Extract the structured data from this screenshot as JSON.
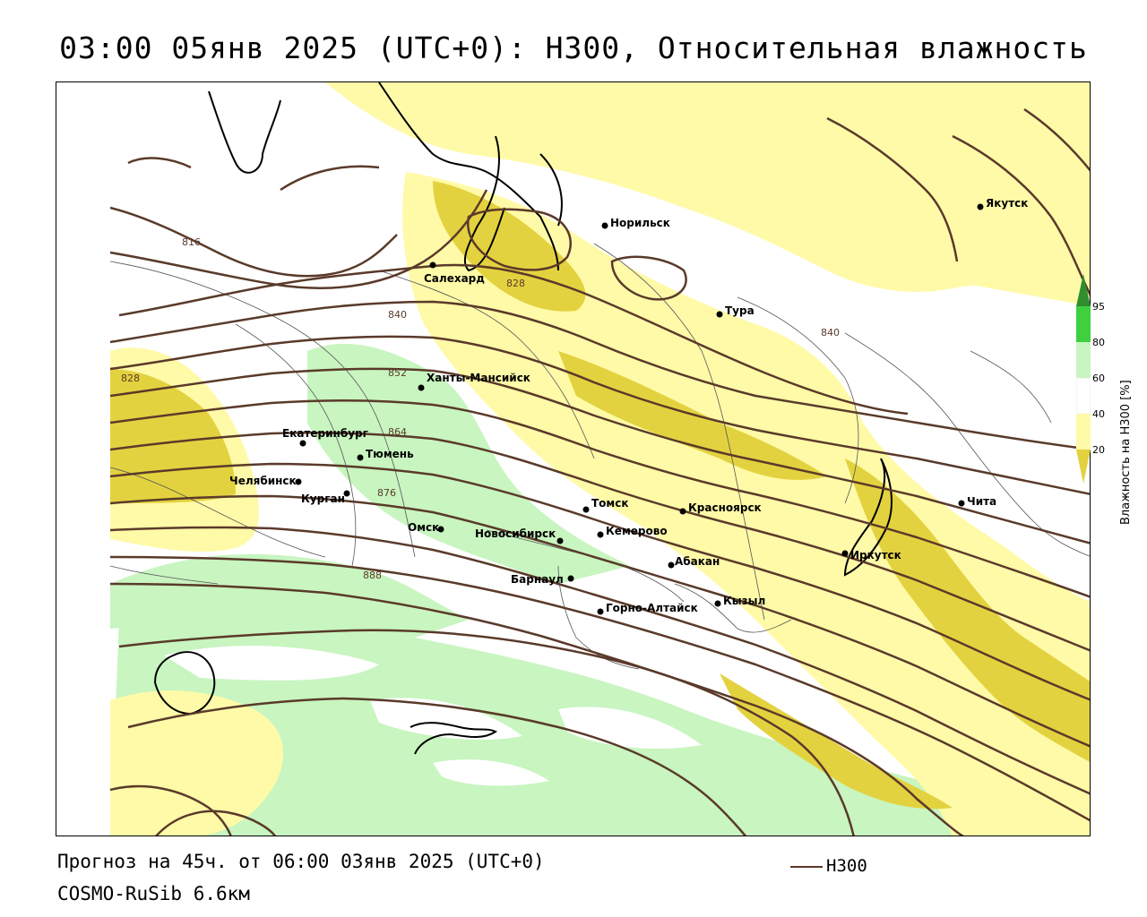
{
  "title": "03:00 05янв 2025 (UTC+0): H300, Относительная влажность",
  "footer": {
    "forecast": "Прогноз на 45ч. от 06:00 03янв 2025 (UTC+0)",
    "model": "COSMO-RuSib 6.6км"
  },
  "legend": {
    "line_label": "H300",
    "line_color": "#5a3a2a"
  },
  "colorbar": {
    "title": "Влажность на H300 [%]",
    "ticks": [
      "95",
      "80",
      "60",
      "40",
      "20"
    ],
    "colors": {
      "c95": "#2f8f2f",
      "c80": "#3fcf3f",
      "c60": "#c8f5c0",
      "c40": "#ffffff",
      "c20": "#fffaa8",
      "c0": "#e3d23f"
    }
  },
  "isohypses": [
    {
      "label": "816"
    },
    {
      "label": "828"
    },
    {
      "label": "828"
    },
    {
      "label": "840"
    },
    {
      "label": "840"
    },
    {
      "label": "852"
    },
    {
      "label": "864"
    },
    {
      "label": "876"
    },
    {
      "label": "888"
    }
  ],
  "cities": [
    {
      "name": "Якутск"
    },
    {
      "name": "Норильск"
    },
    {
      "name": "Салехард"
    },
    {
      "name": "Тура"
    },
    {
      "name": "Ханты-Мансийск"
    },
    {
      "name": "Екатеринбург"
    },
    {
      "name": "Тюмень"
    },
    {
      "name": "Челябинск"
    },
    {
      "name": "Курган"
    },
    {
      "name": "Омск"
    },
    {
      "name": "Новосибирск"
    },
    {
      "name": "Томск"
    },
    {
      "name": "Кемерово"
    },
    {
      "name": "Красноярск"
    },
    {
      "name": "Абакан"
    },
    {
      "name": "Барнаул"
    },
    {
      "name": "Горно-Алтайск"
    },
    {
      "name": "Кызыл"
    },
    {
      "name": "Иркутск"
    },
    {
      "name": "Чита"
    }
  ]
}
